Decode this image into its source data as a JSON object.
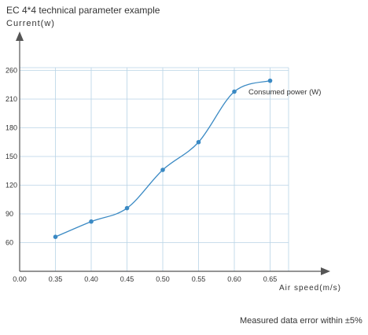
{
  "chart_data": {
    "type": "line",
    "title": "EC 4*4 technical parameter example",
    "ylabel": "Current(w)",
    "xlabel": "Air speed(m/s)",
    "x": [
      0.35,
      0.4,
      0.45,
      0.5,
      0.55,
      0.6,
      0.65
    ],
    "x_ticks": [
      "0.00",
      "0.35",
      "0.40",
      "0.45",
      "0.50",
      "0.55",
      "0.60",
      "0.65"
    ],
    "y_ticks": [
      "60",
      "90",
      "120",
      "150",
      "180",
      "210",
      "260"
    ],
    "series": [
      {
        "name": "Consumed power (W)",
        "values": [
          66,
          82,
          96,
          136,
          165,
          223,
          242
        ]
      }
    ],
    "annotation": "Consumed power (W)",
    "grid": true,
    "colors": {
      "line": "#3b8ac4",
      "grid": "#b8d3e6",
      "axis": "#555555"
    }
  },
  "footnote": "Measured data error within ±5%"
}
